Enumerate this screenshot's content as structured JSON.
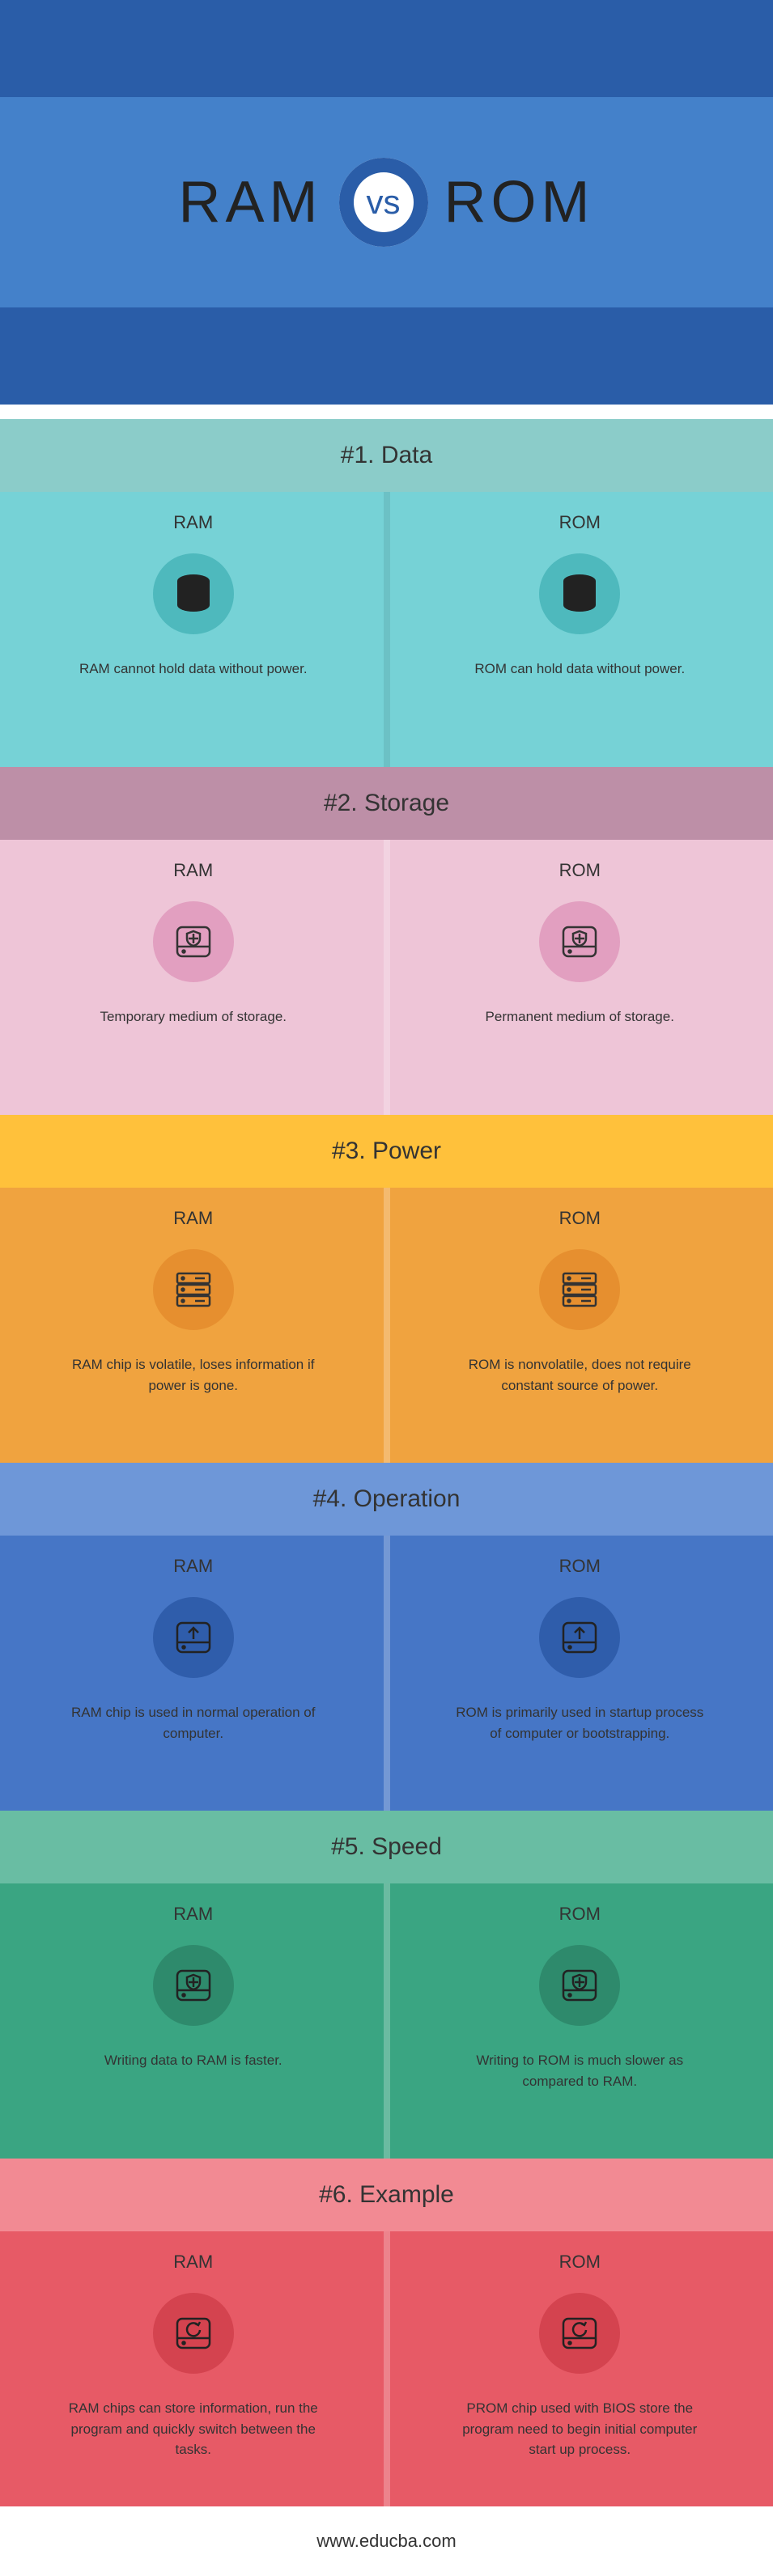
{
  "title_left": "RAM",
  "title_right": "ROM",
  "vs_text": "vs",
  "header_dark": "#2a5da8",
  "header_mid": "#4481ca",
  "footer_text": "www.educba.com",
  "sections": [
    {
      "num": "#1.",
      "name": "Data",
      "title_bg": "#8bccc9",
      "body_bg": "#76d2d6",
      "icon_bg": "#4eb9bd",
      "divider_dark": true,
      "icon": "database",
      "icon_stroke": "#222",
      "ram_desc": "RAM cannot hold data without power.",
      "rom_desc": "ROM can hold data without power."
    },
    {
      "num": "#2.",
      "name": "Storage",
      "title_bg": "#bd8fa7",
      "body_bg": "#eec5d7",
      "icon_bg": "#e29fc0",
      "divider_dark": false,
      "icon": "drive-shield",
      "icon_stroke": "#333",
      "ram_desc": "Temporary medium of storage.",
      "rom_desc": "Permanent medium of storage."
    },
    {
      "num": "#3.",
      "name": "Power",
      "title_bg": "#ffc13b",
      "body_bg": "#f0a33f",
      "icon_bg": "#e68f2f",
      "divider_dark": false,
      "icon": "server",
      "icon_stroke": "#333",
      "ram_desc": "RAM chip is volatile, loses information if power is gone.",
      "rom_desc": "ROM is nonvolatile, does not require constant source of power."
    },
    {
      "num": "#4.",
      "name": "Operation",
      "title_bg": "#6e97d8",
      "body_bg": "#4676c6",
      "icon_bg": "#2f5dab",
      "divider_dark": false,
      "icon": "drive-up",
      "icon_stroke": "#222",
      "ram_desc": "RAM chip is used in normal operation of computer.",
      "rom_desc": "ROM is primarily used in startup process of computer or bootstrapping."
    },
    {
      "num": "#5.",
      "name": "Speed",
      "title_bg": "#69bda3",
      "body_bg": "#3aa582",
      "icon_bg": "#2e8a6c",
      "divider_dark": false,
      "icon": "drive-shield",
      "icon_stroke": "#222",
      "ram_desc": "Writing data to RAM is faster.",
      "rom_desc": "Writing to ROM is much slower as compared to RAM."
    },
    {
      "num": "#6.",
      "name": "Example",
      "title_bg": "#f28a93",
      "body_bg": "#e75a66",
      "icon_bg": "#d4434f",
      "divider_dark": false,
      "icon": "drive-refresh",
      "icon_stroke": "#222",
      "ram_desc": "RAM chips can store information, run the program and quickly switch between the tasks.",
      "rom_desc": "PROM chip used with BIOS store the program need to begin initial computer start up process."
    }
  ]
}
